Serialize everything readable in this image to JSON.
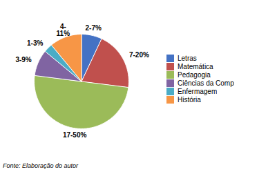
{
  "chart_data": {
    "type": "pie",
    "categories": [
      "Letras",
      "Matemática",
      "Pedagogia",
      "Ciências da Comp",
      "Enfermagem",
      "História"
    ],
    "values": [
      7,
      20,
      50,
      9,
      3,
      11
    ],
    "value_labels": [
      "2-7%",
      "7-20%",
      "17-50%",
      "3-9%",
      "1-3%",
      "4-\n11%"
    ],
    "colors": [
      "#4472C4",
      "#C0504D",
      "#9BBB59",
      "#8064A2",
      "#4BACC6",
      "#F79646"
    ],
    "data_labels": true,
    "legend": "right",
    "caption": "Fonte: Elaboração do autor"
  }
}
